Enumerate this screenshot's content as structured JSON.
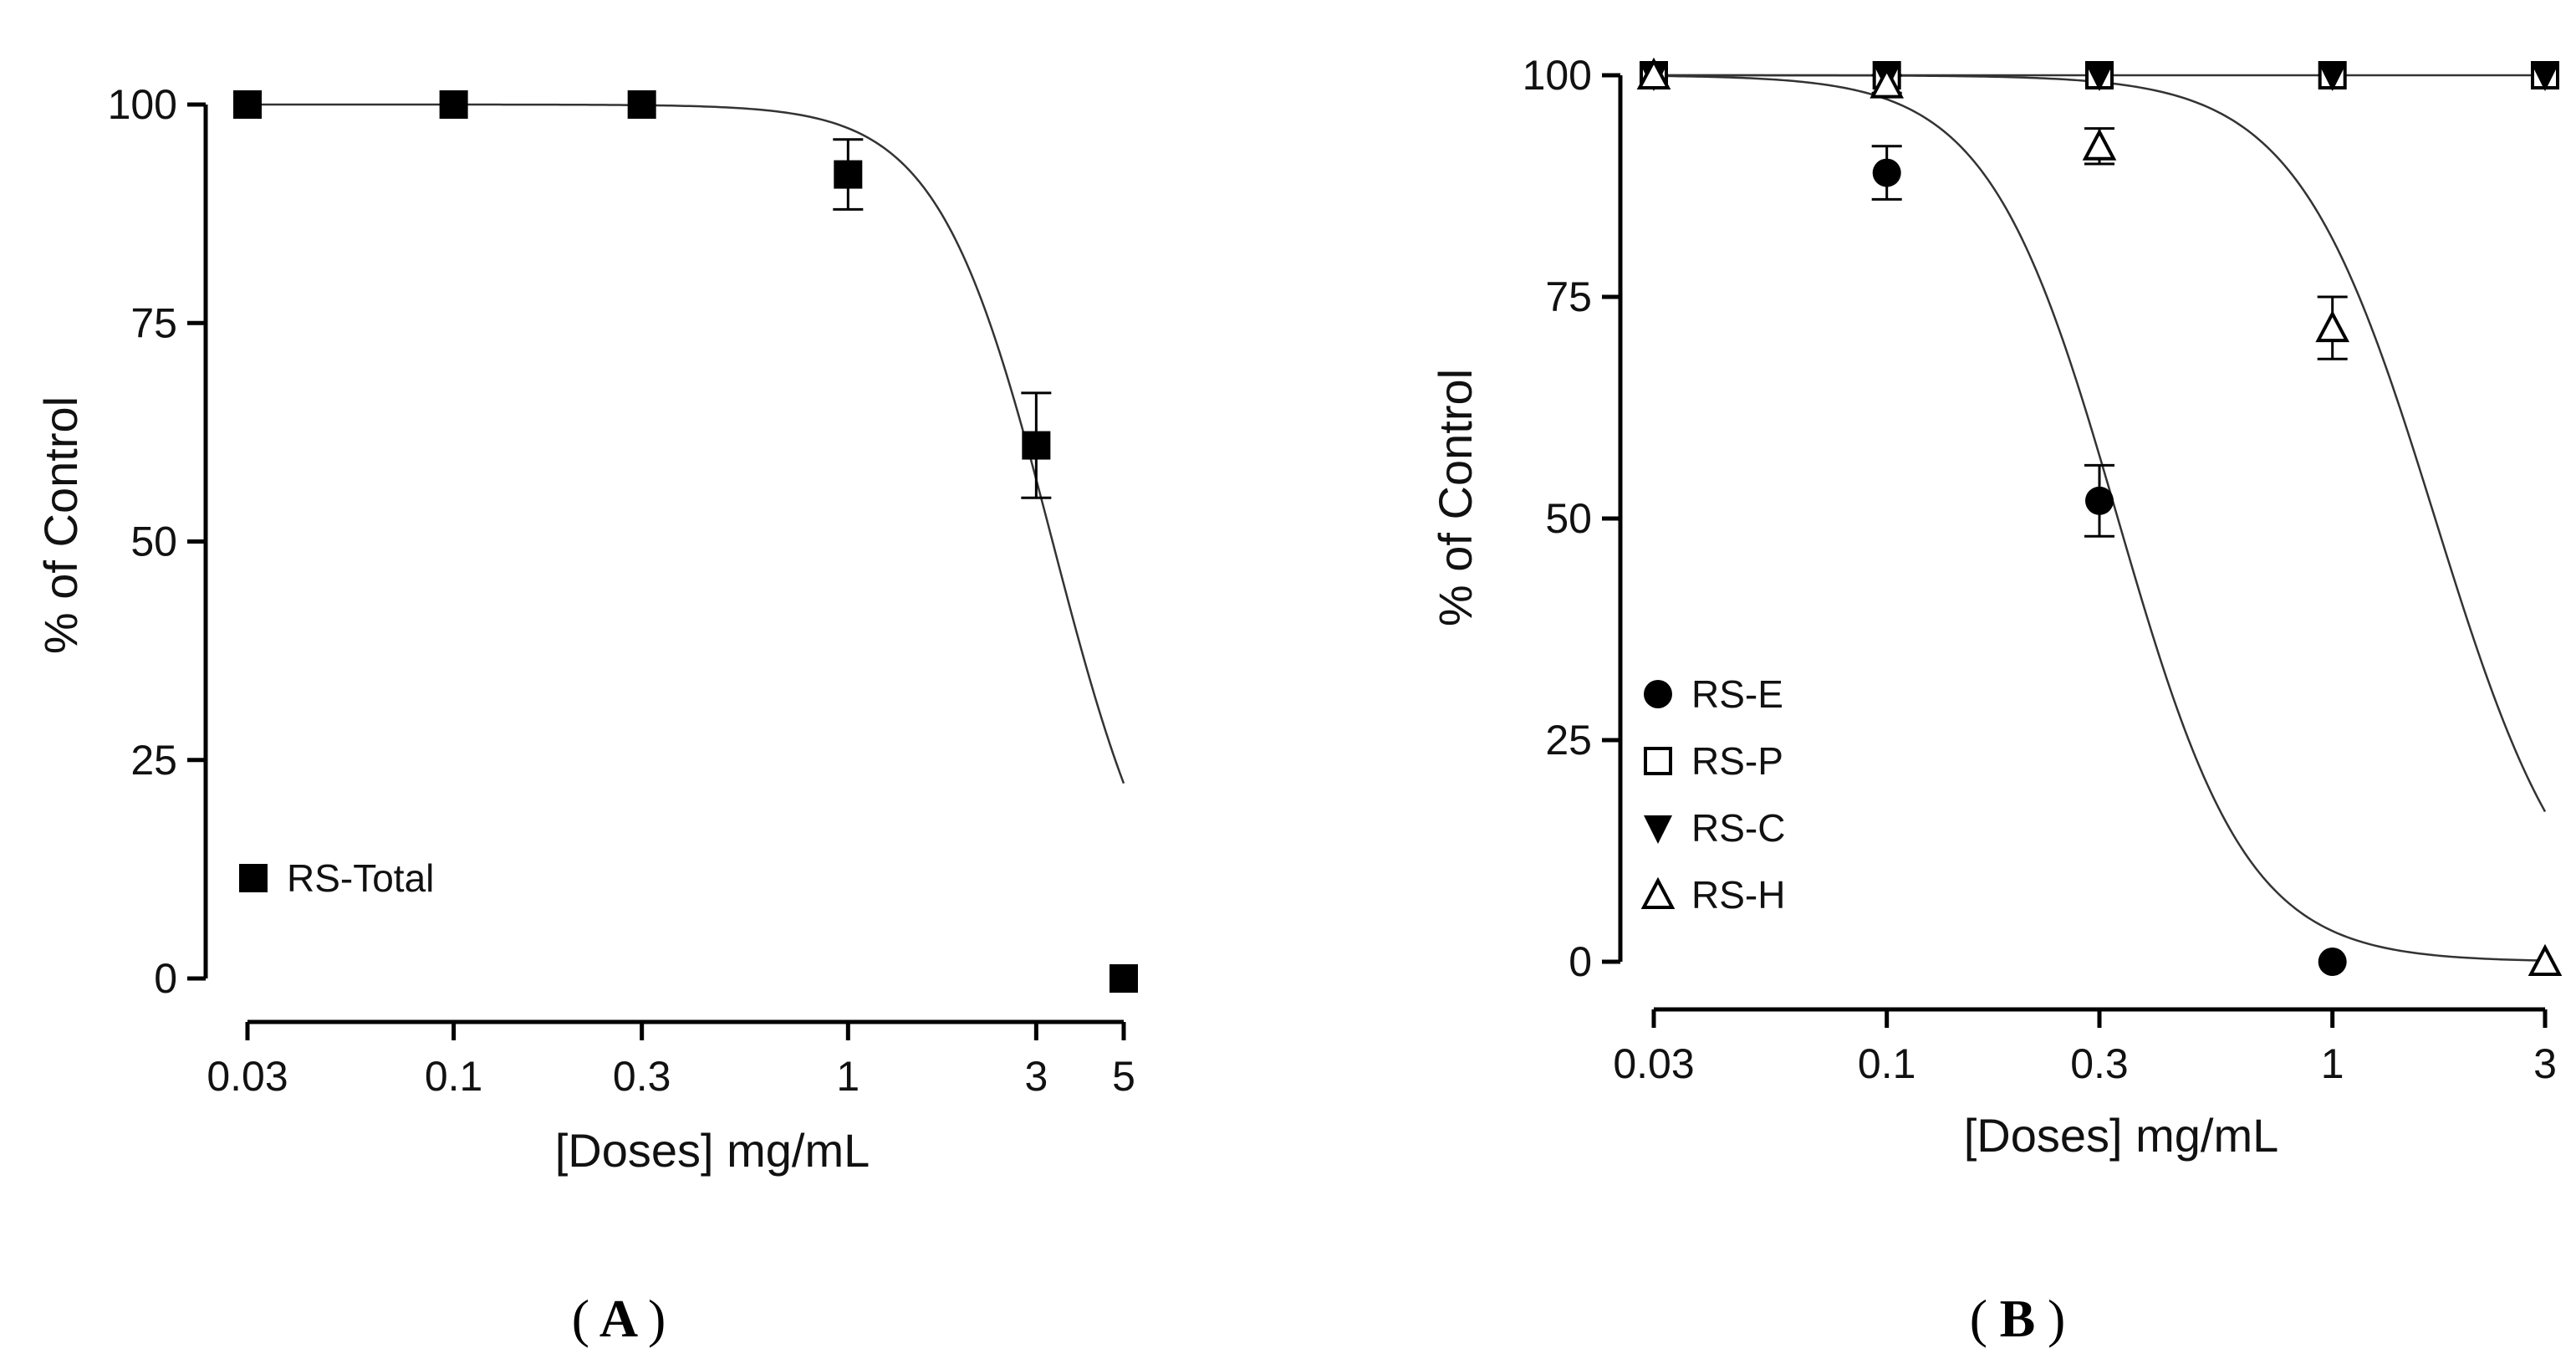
{
  "chart_data": [
    {
      "panel": "A",
      "type": "scatter",
      "xscale": "log",
      "xlabel": "[Doses] mg/mL",
      "ylabel": "% of Control",
      "xticks": [
        "0.03",
        "0.1",
        "0.3",
        "1",
        "3",
        "5"
      ],
      "yticks": [
        "0",
        "25",
        "50",
        "75",
        "100"
      ],
      "xlim": [
        0.03,
        5
      ],
      "ylim": [
        0,
        100
      ],
      "grid": false,
      "legend_position": "bottom-left",
      "series": [
        {
          "name": "RS-Total",
          "marker": "filled-square",
          "x": [
            0.03,
            0.1,
            0.3,
            1,
            3,
            5
          ],
          "y": [
            100,
            100,
            100,
            92,
            61,
            0
          ],
          "err": [
            0,
            0,
            0,
            4,
            6,
            0
          ],
          "curve": {
            "top": 100,
            "bottom": 0,
            "ic50": 3.3,
            "hill": 3
          }
        }
      ]
    },
    {
      "panel": "B",
      "type": "scatter",
      "xscale": "log",
      "xlabel": "[Doses] mg/mL",
      "ylabel": "% of Control",
      "xticks": [
        "0.03",
        "0.1",
        "0.3",
        "1",
        "3"
      ],
      "yticks": [
        "0",
        "25",
        "50",
        "75",
        "100"
      ],
      "xlim": [
        0.03,
        3
      ],
      "ylim": [
        0,
        100
      ],
      "grid": false,
      "legend_position": "bottom-left",
      "series": [
        {
          "name": "RS-E",
          "marker": "filled-circle",
          "x": [
            0.03,
            0.1,
            0.3,
            1
          ],
          "y": [
            100,
            89,
            52,
            0
          ],
          "err": [
            0,
            3,
            4,
            0
          ],
          "curve": {
            "top": 100,
            "bottom": 0,
            "ic50": 0.33,
            "hill": 3
          }
        },
        {
          "name": "RS-P",
          "marker": "open-square",
          "x": [
            0.03,
            0.1,
            0.3,
            1,
            3
          ],
          "y": [
            100,
            100,
            100,
            100,
            100
          ],
          "err": [
            0,
            0,
            0,
            0,
            0
          ],
          "curve": {
            "flat": 100
          }
        },
        {
          "name": "RS-C",
          "marker": "filled-triangle-down",
          "x": [
            0.03,
            0.1,
            0.3,
            1,
            3
          ],
          "y": [
            100,
            100,
            100,
            100,
            100
          ],
          "err": [
            0,
            0,
            0,
            0,
            0
          ],
          "curve": null
        },
        {
          "name": "RS-H",
          "marker": "open-triangle-up",
          "x": [
            0.03,
            0.1,
            0.3,
            1,
            3
          ],
          "y": [
            100,
            99,
            92,
            71.5,
            0
          ],
          "err": [
            0,
            1,
            2,
            3.5,
            0
          ],
          "curve": {
            "top": 100,
            "bottom": 0,
            "ic50": 1.7,
            "hill": 2.8
          }
        }
      ]
    }
  ],
  "panel_labels": [
    "A",
    "B"
  ]
}
